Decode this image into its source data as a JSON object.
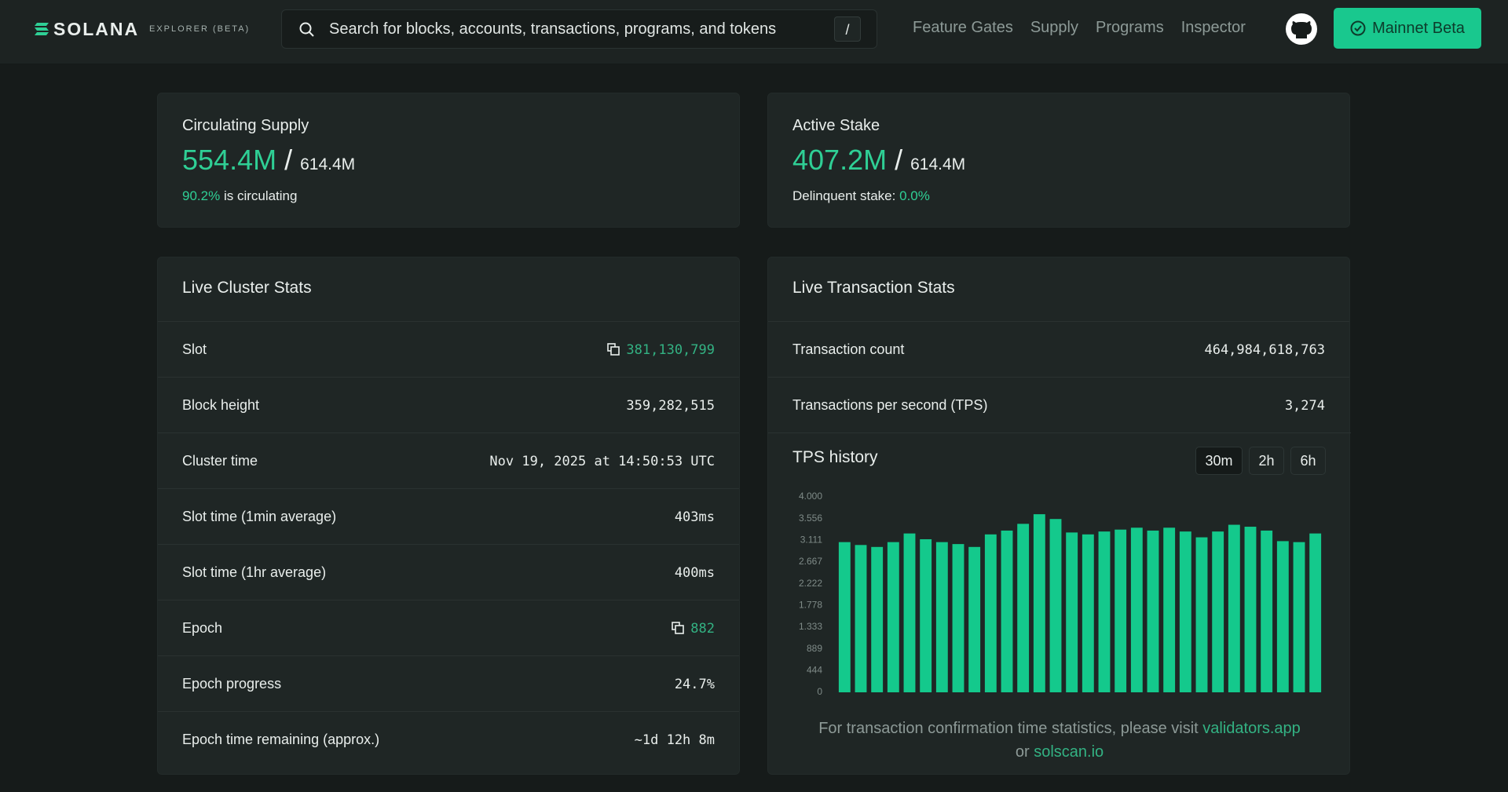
{
  "header": {
    "logo": "SOLANA",
    "subtitle": "EXPLORER (BETA)",
    "search_placeholder": "Search for blocks, accounts, transactions, programs, and tokens",
    "search_shortcut": "/",
    "nav": [
      "Feature Gates",
      "Supply",
      "Programs",
      "Inspector"
    ],
    "cluster_button": "Mainnet Beta"
  },
  "circulating": {
    "title": "Circulating Supply",
    "value": "554.4M",
    "total": "614.4M",
    "percent": "90.2%",
    "suffix": "is circulating"
  },
  "active_stake": {
    "title": "Active Stake",
    "value": "407.2M",
    "total": "614.4M",
    "label": "Delinquent stake:",
    "percent": "0.0%"
  },
  "cluster_stats": {
    "title": "Live Cluster Stats",
    "rows": [
      [
        "Slot",
        "381,130,799"
      ],
      [
        "Block height",
        "359,282,515"
      ],
      [
        "Cluster time",
        "Nov 19, 2025 at 14:50:53 UTC"
      ],
      [
        "Slot time (1min average)",
        "403ms"
      ],
      [
        "Slot time (1hr average)",
        "400ms"
      ],
      [
        "Epoch",
        "882"
      ],
      [
        "Epoch progress",
        "24.7%"
      ],
      [
        "Epoch time remaining (approx.)",
        "~1d 12h 8m"
      ]
    ]
  },
  "transaction_stats": {
    "title": "Live Transaction Stats",
    "rows": [
      [
        "Transaction count",
        "464,984,618,763"
      ],
      [
        "Transactions per second (TPS)",
        "3,274"
      ]
    ],
    "ranges": [
      "30m",
      "2h",
      "6h"
    ],
    "footer_text": "For transaction confirmation time statistics, please visit",
    "footer_link_1": "validators.app",
    "footer_or": "or",
    "footer_link_2": "solscan.io"
  },
  "chart_data": {
    "type": "bar",
    "title": "TPS history",
    "color": "#14c98c",
    "categories": [
      null,
      null,
      null,
      null,
      null,
      null,
      null,
      null,
      null,
      null,
      null,
      null,
      null,
      null,
      null,
      null,
      null,
      null,
      null,
      null,
      null,
      null,
      null,
      null,
      null,
      null,
      null,
      null,
      null,
      null
    ],
    "values": [
      3074,
      3015,
      2975,
      3074,
      3251,
      3133,
      3074,
      3034,
      2975,
      3232,
      3310,
      3448,
      3645,
      3547,
      3271,
      3232,
      3291,
      3330,
      3369,
      3310,
      3369,
      3291,
      3172,
      3291,
      3429,
      3389,
      3310,
      3094,
      3074,
      3251
    ],
    "ylim": [
      0,
      4000
    ],
    "yticks": [
      0,
      444,
      889,
      {
        "value": 1333,
        "label": "1.333"
      },
      {
        "value": 1778,
        "label": "1.778"
      },
      {
        "value": 2222,
        "label": "2.222"
      },
      {
        "value": 2667,
        "label": "2.667"
      },
      {
        "value": 3111,
        "label": "3.111"
      },
      {
        "value": 3556,
        "label": "3.556"
      },
      {
        "value": 4000,
        "label": "4.000"
      }
    ],
    "grid": false
  }
}
